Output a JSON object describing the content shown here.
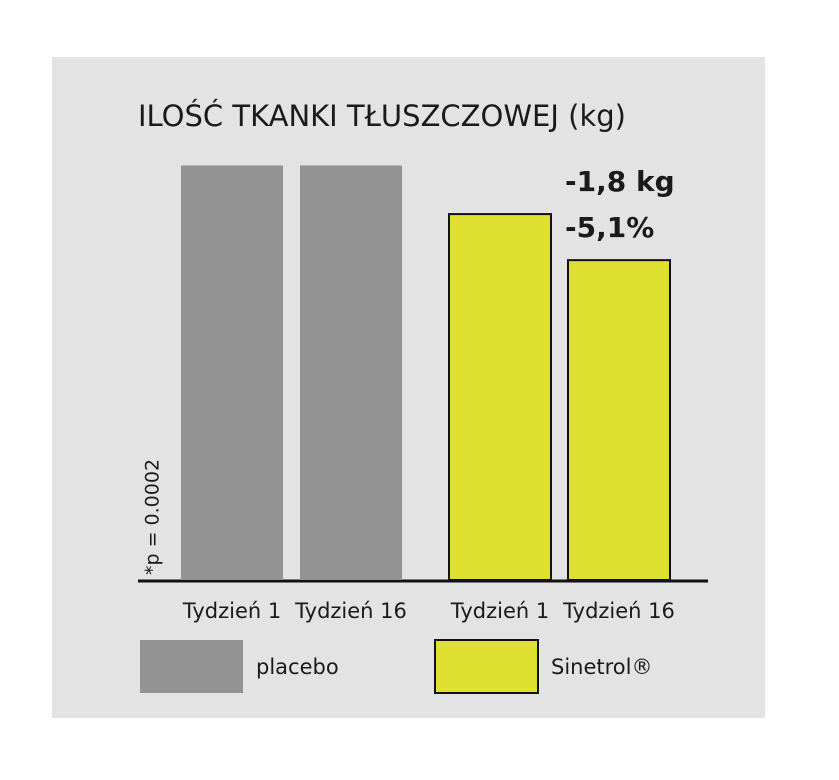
{
  "chart_data": {
    "type": "bar",
    "title": "ILOŚĆ TKANKI TŁUSZCZOWEJ (kg)",
    "series": [
      {
        "name": "placebo",
        "color": "#939393",
        "categories": [
          "Tydzień 1",
          "Tydzień 16"
        ],
        "values": [
          37.2,
          37.2
        ]
      },
      {
        "name": "Sinetrol®",
        "color": "#dfe030",
        "categories": [
          "Tydzień 1",
          "Tydzień 16"
        ],
        "values": [
          35.3,
          33.5
        ]
      }
    ],
    "annotations": [
      "-1,8 kg",
      "-5,1%",
      "*p = 0.0002"
    ],
    "ylim": [
      21,
      38
    ]
  }
}
